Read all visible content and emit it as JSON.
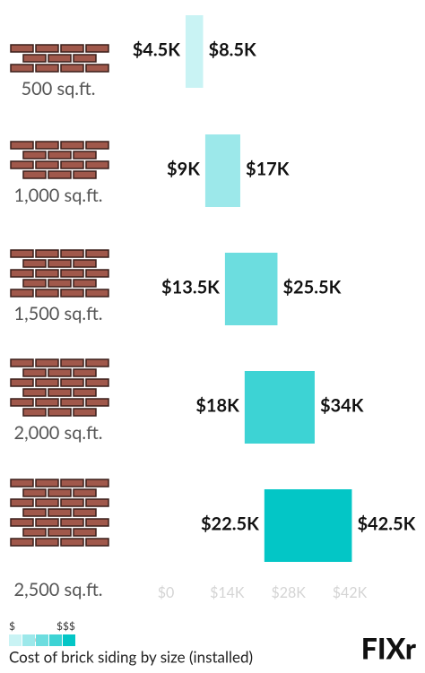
{
  "chart_data": {
    "type": "range-bar",
    "categories": [
      "500 sq.ft.",
      "1,000 sq.ft.",
      "1,500 sq.ft.",
      "2,000 sq.ft.",
      "2,500 sq.ft."
    ],
    "ranges": [
      [
        4500,
        8500
      ],
      [
        9000,
        17000
      ],
      [
        13500,
        25500
      ],
      [
        18000,
        34000
      ],
      [
        22500,
        42500
      ]
    ],
    "value_labels": [
      [
        "$4.5K",
        "$8.5K"
      ],
      [
        "$9K",
        "$17K"
      ],
      [
        "$13.5K",
        "$25.5K"
      ],
      [
        "$18K",
        "$34K"
      ],
      [
        "$22.5K",
        "$42.5K"
      ]
    ],
    "colors": [
      "#c9f3f4",
      "#9ce8ea",
      "#6cdddf",
      "#3dd3d4",
      "#03c6c6"
    ],
    "xlim": [
      0,
      42000
    ],
    "xticks": [
      {
        "value": 0,
        "label": "$0"
      },
      {
        "value": 14000,
        "label": "$14K"
      },
      {
        "value": 28000,
        "label": "$28K"
      },
      {
        "value": 42000,
        "label": "$42K"
      }
    ],
    "legend": {
      "low": "$",
      "high": "$$$"
    },
    "caption": "Cost of brick siding by size (installed)",
    "logo": "FIXr"
  }
}
